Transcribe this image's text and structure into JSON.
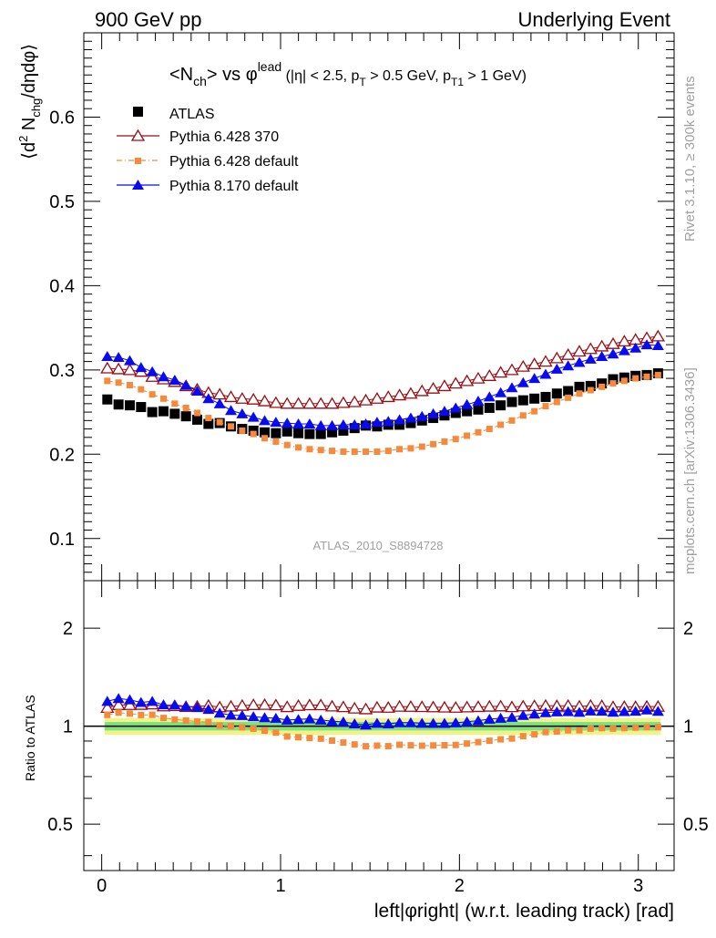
{
  "header": {
    "left": "900 GeV pp",
    "right": "Underlying Event"
  },
  "side_text": {
    "rivet": "Rivet 3.1.10, ≥ 300k events",
    "mcplots": "mcplots.cern.ch [arXiv:1306.3436]"
  },
  "analysis_tag": "ATLAS_2010_S8894728",
  "plot_title": {
    "main": "<N",
    "main_sub": "ch",
    "mid": "> vs φ",
    "mid_sup": "lead",
    "cuts_a": " (|η| < 2.5, p",
    "cuts_sub1": "T",
    "cuts_b": " > 0.5 GeV, p",
    "cuts_sub2": "T1",
    "cuts_c": " > 1 GeV)"
  },
  "y_label_main": {
    "a": "⟨d",
    "sup": "2",
    "b": " N",
    "sub": "chg",
    "c": "/dηdφ⟩"
  },
  "y_label_ratio": "Ratio to ATLAS",
  "x_label": "left|φright| (w.r.t. leading track) [rad]",
  "colors": {
    "atlas": "#000000",
    "p6_370": "#9b0d14",
    "p6_default": "#f58a3c",
    "p8_default": "#0a0af0",
    "band_inner": "#7fe27f",
    "band_outer": "#f2f28a"
  },
  "chart_data": [
    {
      "type": "scatter",
      "panel": "main",
      "xlim": [
        -0.1,
        3.2
      ],
      "ylim": [
        0.05,
        0.7
      ],
      "yticks": [
        0.1,
        0.2,
        0.3,
        0.4,
        0.5,
        0.6
      ],
      "legend_placement": "top-left",
      "x": [
        0.0314,
        0.0942,
        0.1571,
        0.2199,
        0.2827,
        0.3456,
        0.4084,
        0.4712,
        0.5341,
        0.5969,
        0.6597,
        0.7226,
        0.7854,
        0.8482,
        0.9111,
        0.9739,
        1.0367,
        1.0996,
        1.1624,
        1.2252,
        1.2881,
        1.3509,
        1.4137,
        1.4765,
        1.5394,
        1.6022,
        1.665,
        1.7279,
        1.7907,
        1.8535,
        1.9164,
        1.9792,
        2.042,
        2.1049,
        2.1677,
        2.2305,
        2.2934,
        2.3562,
        2.419,
        2.4819,
        2.5447,
        2.6075,
        2.6704,
        2.7332,
        2.796,
        2.8588,
        2.9217,
        2.9845,
        3.0473,
        3.1102
      ],
      "series": [
        {
          "name": "ATLAS",
          "marker": "square",
          "values": [
            0.265,
            0.259,
            0.258,
            0.256,
            0.25,
            0.251,
            0.248,
            0.245,
            0.241,
            0.236,
            0.237,
            0.233,
            0.23,
            0.228,
            0.226,
            0.225,
            0.227,
            0.225,
            0.224,
            0.224,
            0.226,
            0.228,
            0.231,
            0.234,
            0.233,
            0.235,
            0.235,
            0.237,
            0.24,
            0.243,
            0.246,
            0.249,
            0.251,
            0.253,
            0.255,
            0.258,
            0.262,
            0.264,
            0.266,
            0.268,
            0.272,
            0.275,
            0.28,
            0.281,
            0.284,
            0.289,
            0.291,
            0.293,
            0.294,
            0.296
          ]
        },
        {
          "name": "Pythia 6.428 370",
          "marker": "open-triangle",
          "values": [
            0.302,
            0.301,
            0.3,
            0.298,
            0.292,
            0.289,
            0.286,
            0.281,
            0.277,
            0.273,
            0.271,
            0.268,
            0.266,
            0.265,
            0.263,
            0.261,
            0.26,
            0.26,
            0.26,
            0.26,
            0.26,
            0.261,
            0.262,
            0.264,
            0.266,
            0.268,
            0.27,
            0.272,
            0.275,
            0.278,
            0.281,
            0.284,
            0.287,
            0.29,
            0.293,
            0.297,
            0.3,
            0.304,
            0.307,
            0.31,
            0.314,
            0.318,
            0.322,
            0.325,
            0.328,
            0.331,
            0.334,
            0.336,
            0.338,
            0.34
          ]
        },
        {
          "name": "Pythia 6.428 default",
          "marker": "small-square-dashdot",
          "values": [
            0.287,
            0.285,
            0.282,
            0.277,
            0.271,
            0.266,
            0.26,
            0.255,
            0.249,
            0.243,
            0.238,
            0.233,
            0.228,
            0.224,
            0.219,
            0.215,
            0.211,
            0.208,
            0.206,
            0.205,
            0.204,
            0.203,
            0.203,
            0.203,
            0.203,
            0.204,
            0.206,
            0.207,
            0.209,
            0.212,
            0.215,
            0.218,
            0.222,
            0.226,
            0.23,
            0.235,
            0.24,
            0.246,
            0.251,
            0.257,
            0.262,
            0.267,
            0.272,
            0.276,
            0.28,
            0.284,
            0.287,
            0.29,
            0.292,
            0.294
          ]
        },
        {
          "name": "Pythia 8.170 default",
          "marker": "filled-triangle",
          "values": [
            0.316,
            0.315,
            0.311,
            0.303,
            0.298,
            0.292,
            0.288,
            0.282,
            0.275,
            0.266,
            0.26,
            0.252,
            0.248,
            0.244,
            0.24,
            0.238,
            0.237,
            0.236,
            0.236,
            0.234,
            0.234,
            0.235,
            0.235,
            0.236,
            0.238,
            0.239,
            0.241,
            0.243,
            0.245,
            0.248,
            0.251,
            0.255,
            0.259,
            0.263,
            0.268,
            0.273,
            0.279,
            0.285,
            0.29,
            0.295,
            0.301,
            0.305,
            0.309,
            0.313,
            0.316,
            0.319,
            0.323,
            0.326,
            0.33,
            0.329
          ]
        }
      ]
    },
    {
      "type": "scatter",
      "panel": "ratio",
      "xlim": [
        -0.1,
        3.2
      ],
      "ylim": [
        0.36,
        2.8
      ],
      "y_scale": "log",
      "yticks": [
        0.5,
        1,
        2
      ],
      "xticks": [
        0,
        1,
        2,
        3
      ],
      "reference_line": 1,
      "band_inner": [
        0.97,
        1.03
      ],
      "band_outer": [
        0.94,
        1.06
      ],
      "series": [
        {
          "name": "Pythia 6.428 370",
          "values_ref": "main"
        },
        {
          "name": "Pythia 6.428 default",
          "values_ref": "main"
        },
        {
          "name": "Pythia 8.170 default",
          "values_ref": "main"
        }
      ]
    }
  ]
}
